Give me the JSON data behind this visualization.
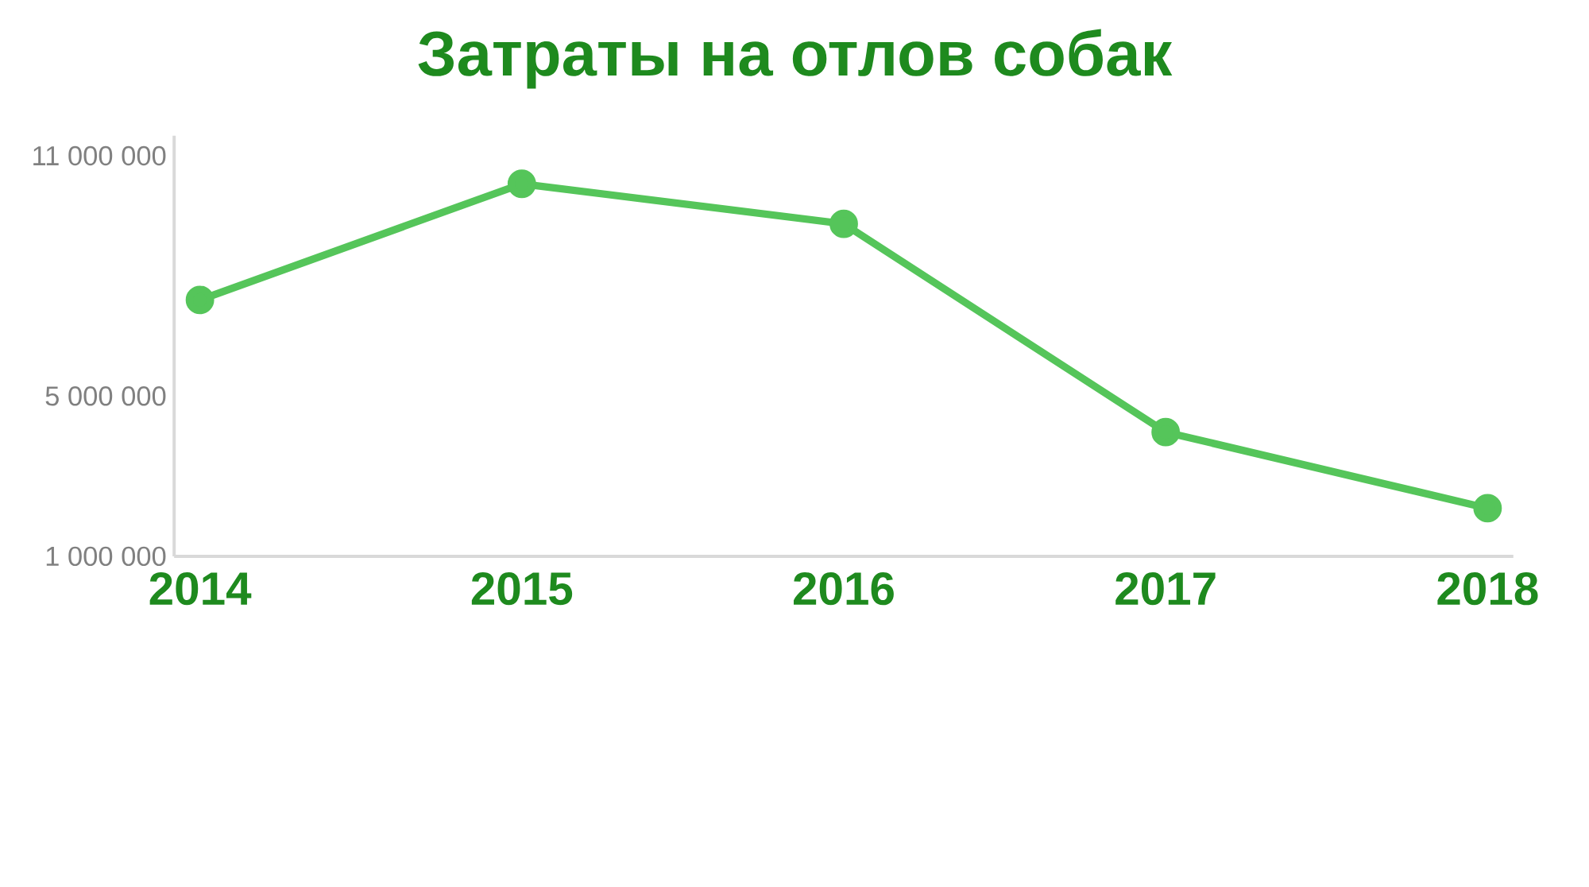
{
  "chart_data": {
    "type": "line",
    "title": "Затраты на отлов собак",
    "categories": [
      "2014",
      "2015",
      "2016",
      "2017",
      "2018"
    ],
    "values": [
      7400000,
      10300000,
      9300000,
      4100000,
      2200000
    ],
    "color": "#55c55a",
    "marker": "circle",
    "ylim": [
      1000000,
      11500000
    ],
    "yticks": [
      {
        "value": 1000000,
        "label": "1 000 000"
      },
      {
        "value": 5000000,
        "label": "5 000 000"
      },
      {
        "value": 11000000,
        "label": "11 000 000"
      }
    ],
    "grid": false
  }
}
